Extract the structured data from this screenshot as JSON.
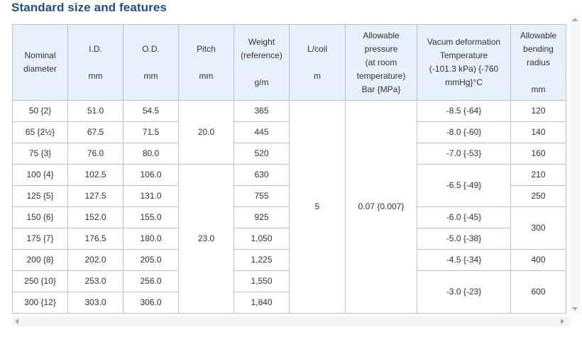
{
  "heading": "Standard size and features",
  "columns": [
    [
      "Nominal",
      "diameter"
    ],
    [
      "I.D.",
      "",
      "mm"
    ],
    [
      "O.D.",
      "",
      "mm"
    ],
    [
      "Pitch",
      "",
      "mm"
    ],
    [
      "Weight",
      "(reference)",
      "",
      "g/m"
    ],
    [
      "L/coil",
      "",
      "m"
    ],
    [
      "Allowable",
      "pressure",
      "(at room",
      "temperature)",
      "Bar {MPa}"
    ],
    [
      "Vacum deformation",
      "Temperature",
      "(-101.3 kPa) {-760",
      "mmHg}°C"
    ],
    [
      "Allowable",
      "bending",
      "radius",
      "",
      "mm"
    ]
  ],
  "rows": [
    {
      "nominal": "50 {2}",
      "id": "51.0",
      "od": "54.5",
      "weight": "365"
    },
    {
      "nominal": "65 {2½}",
      "id": "67.5",
      "od": "71.5",
      "weight": "445"
    },
    {
      "nominal": "75 {3}",
      "id": "76.0",
      "od": "80.0",
      "weight": "520"
    },
    {
      "nominal": "100 {4}",
      "id": "102.5",
      "od": "106.0",
      "weight": "630"
    },
    {
      "nominal": "125 {5}",
      "id": "127.5",
      "od": "131.0",
      "weight": "755"
    },
    {
      "nominal": "150 {6}",
      "id": "152.0",
      "od": "155.0",
      "weight": "925"
    },
    {
      "nominal": "175 {7}",
      "id": "176.5",
      "od": "180.0",
      "weight": "1,050"
    },
    {
      "nominal": "200 {8}",
      "id": "202.0",
      "od": "205.0",
      "weight": "1,225"
    },
    {
      "nominal": "250 {10}",
      "id": "253.0",
      "od": "256.0",
      "weight": "1,550"
    },
    {
      "nominal": "300 {12}",
      "id": "303.0",
      "od": "306.0",
      "weight": "1,840"
    }
  ],
  "pitch": [
    "20.0",
    "23.0"
  ],
  "l_coil": "5",
  "allowable_pressure": "0.07 {0.007}",
  "vacuum": [
    "-8.5 {-64}",
    "-8.0 {-60}",
    "-7.0 {-53}",
    "-6.5 {-49}",
    "-6.0 {-45}",
    "-5.0 {-38}",
    "-4.5 {-34}",
    "-3.0 {-23}"
  ],
  "bending": [
    "120",
    "140",
    "160",
    "210",
    "250",
    "300",
    "400",
    "600"
  ]
}
